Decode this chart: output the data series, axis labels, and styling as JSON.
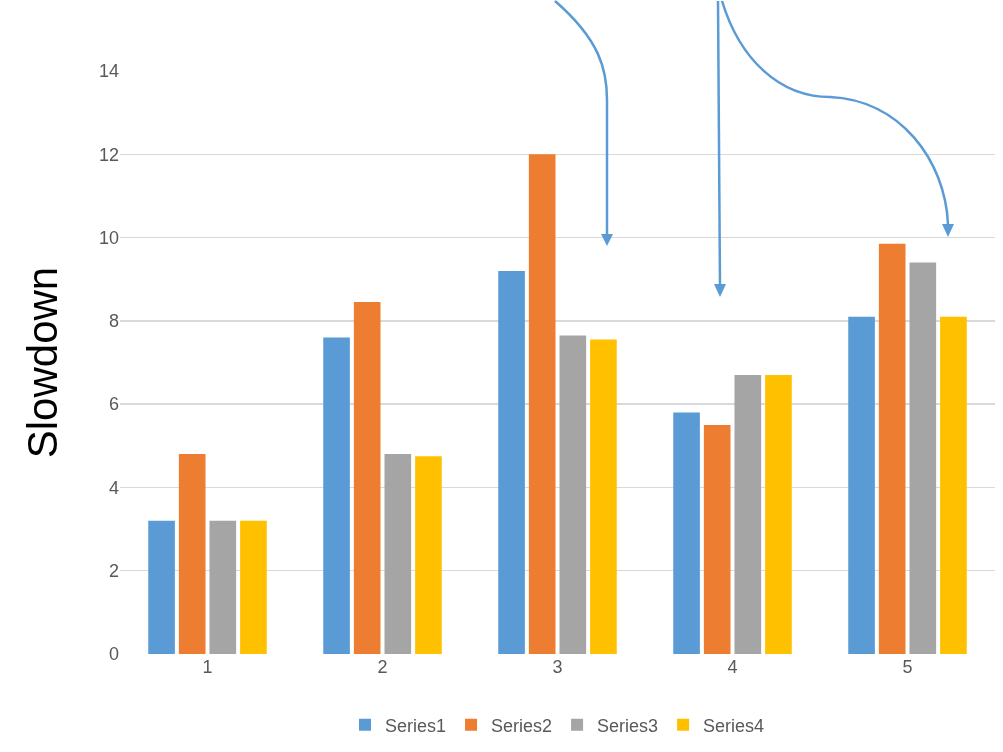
{
  "chart_data": {
    "type": "bar",
    "ylabel": "Slowdown",
    "categories": [
      "1",
      "2",
      "3",
      "4",
      "5"
    ],
    "series": [
      {
        "name": "Series1",
        "color": "#5b9bd5",
        "values": [
          3.2,
          7.6,
          9.2,
          5.8,
          8.1
        ]
      },
      {
        "name": "Series2",
        "color": "#ed7d31",
        "values": [
          4.8,
          8.45,
          12,
          5.5,
          9.85
        ]
      },
      {
        "name": "Series3",
        "color": "#a5a5a5",
        "values": [
          3.2,
          4.8,
          7.65,
          6.7,
          9.4
        ]
      },
      {
        "name": "Series4",
        "color": "#ffc000",
        "values": [
          3.2,
          4.75,
          7.55,
          6.7,
          8.1
        ]
      }
    ],
    "ylim": [
      0,
      14
    ],
    "yticks": [
      0,
      2,
      4,
      6,
      8,
      10,
      12,
      14
    ],
    "grid": "y",
    "legend": "bottom"
  }
}
